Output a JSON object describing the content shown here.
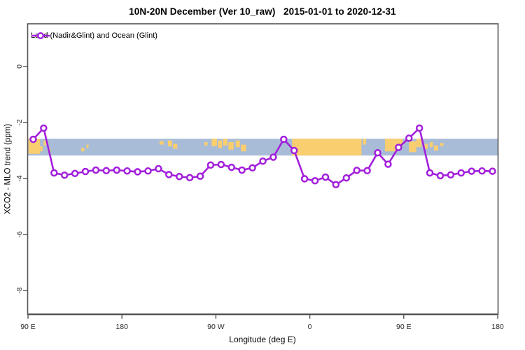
{
  "chart_data": {
    "type": "line",
    "title": "10N-20N December (Ver 10_raw)   2015-01-01 to 2020-12-31",
    "xlabel": "Longitude (deg E)",
    "ylabel": "XCO2 - MLO trend (ppm)",
    "legend_label": "Land (Nadir&Glint) and Ocean (Glint)",
    "legend_position": "top-left-inside",
    "grid": "off",
    "line_color": "#A21FDB",
    "marker": "open-circle-white-fill",
    "axis_color": "#545454",
    "tick_label_color": "#2b2b2b",
    "x_domain_deg_e_continued": [
      90,
      540
    ],
    "ylim": [
      -8.85,
      1.5
    ],
    "x_ticks": [
      {
        "lon": 90,
        "label": "90 E"
      },
      {
        "lon": 180,
        "label": "180"
      },
      {
        "lon": 270,
        "label": "90 W"
      },
      {
        "lon": 360,
        "label": "0"
      },
      {
        "lon": 450,
        "label": "90 E"
      },
      {
        "lon": 540,
        "label": "180"
      }
    ],
    "y_ticks": [
      {
        "value": 0,
        "label": "0"
      },
      {
        "value": -2,
        "label": "-2"
      },
      {
        "value": -4,
        "label": "-4"
      },
      {
        "value": -6,
        "label": "-6"
      },
      {
        "value": -8,
        "label": "-8"
      }
    ],
    "map_band": {
      "description": "10N-20N latitude world-map strip drawn across plot",
      "ocean_color": "#A8BCD8",
      "land_color": "#F9CE6F",
      "value_top": -2.58,
      "value_bottom": -3.18,
      "land_patches_lon_fracTop_fracBottom": [
        [
          90.5,
          101.5,
          0.0,
          0.9
        ],
        [
          101.5,
          104.0,
          0.45,
          0.75
        ],
        [
          105.0,
          107.5,
          0.1,
          0.4
        ],
        [
          109.0,
          111.5,
          0.55,
          0.8
        ],
        [
          141.0,
          144.0,
          0.55,
          0.75
        ],
        [
          146.0,
          148.0,
          0.35,
          0.55
        ],
        [
          216.0,
          220.0,
          0.15,
          0.35
        ],
        [
          224.0,
          228.0,
          0.1,
          0.45
        ],
        [
          229.0,
          233.0,
          0.3,
          0.6
        ],
        [
          259.0,
          262.0,
          0.2,
          0.4
        ],
        [
          266.0,
          271.0,
          0.0,
          0.45
        ],
        [
          272.0,
          276.0,
          0.1,
          0.55
        ],
        [
          277.0,
          281.0,
          0.0,
          0.4
        ],
        [
          282.0,
          287.0,
          0.2,
          0.65
        ],
        [
          289.0,
          293.0,
          0.1,
          0.5
        ],
        [
          294.0,
          299.0,
          0.35,
          0.75
        ],
        [
          343.0,
          409.5,
          0.0,
          1.0
        ],
        [
          411.0,
          414.0,
          0.0,
          0.35
        ],
        [
          432.0,
          443.0,
          0.0,
          0.75
        ],
        [
          443.0,
          449.0,
          0.0,
          0.45
        ],
        [
          455.0,
          462.0,
          0.15,
          0.8
        ],
        [
          462.0,
          467.0,
          0.0,
          0.5
        ],
        [
          470.0,
          473.0,
          0.3,
          0.6
        ],
        [
          475.0,
          478.0,
          0.2,
          0.5
        ],
        [
          479.0,
          483.0,
          0.4,
          0.7
        ],
        [
          485.0,
          488.0,
          0.25,
          0.45
        ]
      ]
    },
    "series": [
      {
        "name": "Land (Nadir&Glint) and Ocean (Glint)",
        "x_deg_e_continued": [
          95,
          105,
          115,
          125,
          135,
          145,
          155,
          165,
          175,
          185,
          195,
          205,
          215,
          225,
          235,
          245,
          255,
          265,
          275,
          285,
          295,
          305,
          315,
          325,
          335,
          345,
          355,
          365,
          375,
          385,
          395,
          405,
          415,
          425,
          435,
          445,
          455,
          465,
          475,
          485,
          495,
          505,
          515,
          525,
          535
        ],
        "x_map_longitude_labels": [
          "95E",
          "105E",
          "115E",
          "125E",
          "135E",
          "145E",
          "155E",
          "165E",
          "175E",
          "175W",
          "165W",
          "155W",
          "145W",
          "135W",
          "125W",
          "115W",
          "105W",
          "95W",
          "85W",
          "75W",
          "65W",
          "55W",
          "45W",
          "35W",
          "25W",
          "15W",
          "5W",
          "5E",
          "15E",
          "25E",
          "35E",
          "45E",
          "55E",
          "65E",
          "75E",
          "85E",
          "95E",
          "105E",
          "115E",
          "125E",
          "135E",
          "145E",
          "155E",
          "165E",
          "175E"
        ],
        "values": [
          -2.6,
          -2.2,
          -3.8,
          -3.88,
          -3.82,
          -3.75,
          -3.7,
          -3.72,
          -3.7,
          -3.73,
          -3.76,
          -3.73,
          -3.65,
          -3.86,
          -3.93,
          -3.97,
          -3.92,
          -3.52,
          -3.5,
          -3.6,
          -3.7,
          -3.62,
          -3.38,
          -3.24,
          -2.6,
          -3.0,
          -4.01,
          -4.08,
          -3.95,
          -4.22,
          -3.98,
          -3.71,
          -3.72,
          -3.08,
          -3.49,
          -2.89,
          -2.56,
          -2.2,
          -3.8,
          -3.9,
          -3.87,
          -3.8,
          -3.74,
          -3.73,
          -3.74
        ]
      }
    ]
  }
}
